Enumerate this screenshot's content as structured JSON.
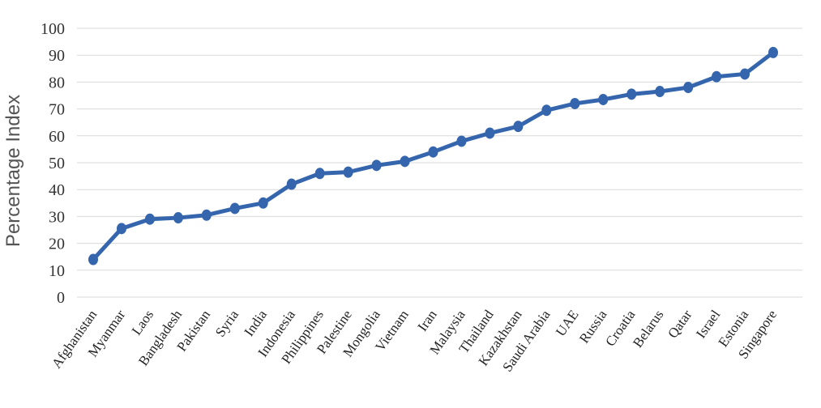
{
  "chart_data": {
    "type": "line",
    "title": "",
    "xlabel": "",
    "ylabel": "Percentage Index",
    "ylim": [
      0,
      100
    ],
    "yticks": [
      0,
      10,
      20,
      30,
      40,
      50,
      60,
      70,
      80,
      90,
      100
    ],
    "grid": "horizontal",
    "categories": [
      "Afghanistan",
      "Myanmar",
      "Laos",
      "Bangladesh",
      "Pakistan",
      "Syria",
      "India",
      "Indonesia",
      "Philippines",
      "Palestine",
      "Mongolia",
      "Vietnam",
      "Iran",
      "Malaysia",
      "Thailand",
      "Kazakhstan",
      "Saudi Arabia",
      "UAE",
      "Russia",
      "Croatia",
      "Belarus",
      "Qatar",
      "Israel",
      "Estonia",
      "Singapore"
    ],
    "series": [
      {
        "values": [
          14,
          25.5,
          29,
          29.5,
          30.5,
          33,
          35,
          42,
          46,
          46.5,
          49,
          50.5,
          54,
          58,
          61,
          63.5,
          69.5,
          72,
          73.5,
          75.5,
          76.5,
          78,
          82,
          83,
          91
        ],
        "color": "#3566ad"
      }
    ]
  }
}
